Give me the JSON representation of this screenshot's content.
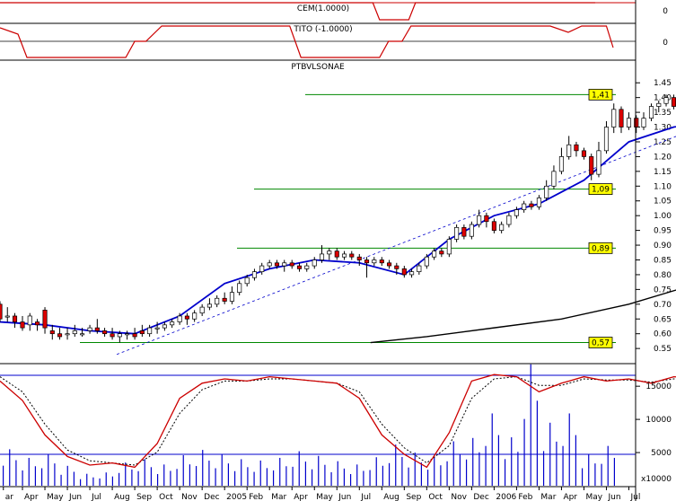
{
  "chart_data": {
    "type": "candlestick",
    "panels": {
      "cem": {
        "label": "CEM(1.0000)",
        "y_ticks": [
          "0"
        ],
        "x_label_breaks": [
          0.0,
          2.7,
          5.4,
          8.3,
          26.3,
          27.3,
          44.0
        ]
      },
      "tito": {
        "label": "TITO (-1.0000)",
        "y_ticks": [
          "0"
        ]
      },
      "price": {
        "label": "PTBVLSONAE",
        "ylim": [
          0.52,
          1.475
        ],
        "y_ticks": [
          "1.45",
          "1.40",
          "1.35",
          "1.30",
          "1.25",
          "1.20",
          "1.15",
          "1.10",
          "1.05",
          "1.00",
          "0.95",
          "0.90",
          "0.85",
          "0.80",
          "0.75",
          "0.70",
          "0.65",
          "0.60",
          "0.55"
        ],
        "support_levels": [
          {
            "label": "1,41",
            "value": 1.41
          },
          {
            "label": "1,09",
            "value": 1.09
          },
          {
            "label": "0,89",
            "value": 0.89
          },
          {
            "label": "0,57",
            "value": 0.57
          }
        ],
        "trendline": {
          "start": [
            5.2,
            0.53
          ],
          "end": [
            31.5,
            1.31
          ]
        },
        "moving_average_short": {
          "x": [
            0,
            2,
            4,
            6,
            8,
            10,
            12,
            14,
            16,
            18,
            20,
            22,
            24,
            26,
            28,
            30,
            31.5
          ],
          "y": [
            0.64,
            0.63,
            0.61,
            0.6,
            0.66,
            0.77,
            0.82,
            0.85,
            0.84,
            0.8,
            0.92,
            1.0,
            1.04,
            1.12,
            1.25,
            1.3,
            1.32
          ]
        },
        "moving_average_long": {
          "x": [
            16.5,
            19,
            22,
            25,
            28,
            31.5
          ],
          "y": [
            0.57,
            0.59,
            0.62,
            0.65,
            0.7,
            0.78
          ]
        },
        "candles": [
          [
            0.0,
            0.7,
            0.65,
            0.71,
            0.64
          ],
          [
            0.33,
            0.66,
            0.66,
            0.69,
            0.64
          ],
          [
            0.66,
            0.66,
            0.64,
            0.67,
            0.62
          ],
          [
            1.0,
            0.64,
            0.62,
            0.66,
            0.61
          ],
          [
            1.33,
            0.63,
            0.66,
            0.67,
            0.61
          ],
          [
            1.66,
            0.64,
            0.63,
            0.65,
            0.61
          ],
          [
            2.0,
            0.68,
            0.62,
            0.69,
            0.6
          ],
          [
            2.33,
            0.61,
            0.6,
            0.63,
            0.58
          ],
          [
            2.66,
            0.6,
            0.59,
            0.62,
            0.58
          ],
          [
            3.0,
            0.6,
            0.6,
            0.62,
            0.58
          ],
          [
            3.33,
            0.6,
            0.61,
            0.63,
            0.59
          ],
          [
            3.66,
            0.6,
            0.6,
            0.62,
            0.59
          ],
          [
            4.0,
            0.61,
            0.62,
            0.63,
            0.6
          ],
          [
            4.33,
            0.62,
            0.61,
            0.65,
            0.6
          ],
          [
            4.66,
            0.61,
            0.6,
            0.62,
            0.59
          ],
          [
            5.0,
            0.6,
            0.59,
            0.62,
            0.58
          ],
          [
            5.33,
            0.59,
            0.6,
            0.61,
            0.57
          ],
          [
            5.66,
            0.6,
            0.6,
            0.61,
            0.58
          ],
          [
            6.0,
            0.6,
            0.59,
            0.62,
            0.58
          ],
          [
            6.33,
            0.61,
            0.6,
            0.63,
            0.59
          ],
          [
            6.66,
            0.6,
            0.62,
            0.63,
            0.59
          ],
          [
            7.0,
            0.62,
            0.62,
            0.64,
            0.6
          ],
          [
            7.33,
            0.62,
            0.63,
            0.64,
            0.61
          ],
          [
            7.66,
            0.63,
            0.64,
            0.65,
            0.62
          ],
          [
            8.0,
            0.64,
            0.66,
            0.67,
            0.63
          ],
          [
            8.33,
            0.66,
            0.65,
            0.67,
            0.63
          ],
          [
            8.66,
            0.65,
            0.67,
            0.68,
            0.64
          ],
          [
            9.0,
            0.67,
            0.69,
            0.7,
            0.66
          ],
          [
            9.33,
            0.69,
            0.7,
            0.72,
            0.68
          ],
          [
            9.66,
            0.7,
            0.72,
            0.73,
            0.69
          ],
          [
            10.0,
            0.72,
            0.71,
            0.74,
            0.7
          ],
          [
            10.33,
            0.71,
            0.74,
            0.76,
            0.7
          ],
          [
            10.66,
            0.74,
            0.77,
            0.78,
            0.73
          ],
          [
            11.0,
            0.77,
            0.79,
            0.8,
            0.76
          ],
          [
            11.33,
            0.79,
            0.81,
            0.82,
            0.78
          ],
          [
            11.66,
            0.81,
            0.83,
            0.84,
            0.8
          ],
          [
            12.0,
            0.83,
            0.84,
            0.85,
            0.82
          ],
          [
            12.33,
            0.84,
            0.83,
            0.85,
            0.82
          ],
          [
            12.66,
            0.83,
            0.84,
            0.85,
            0.81
          ],
          [
            13.0,
            0.84,
            0.83,
            0.85,
            0.82
          ],
          [
            13.33,
            0.83,
            0.82,
            0.84,
            0.81
          ],
          [
            13.66,
            0.82,
            0.83,
            0.84,
            0.81
          ],
          [
            14.0,
            0.83,
            0.85,
            0.86,
            0.82
          ],
          [
            14.33,
            0.85,
            0.87,
            0.9,
            0.84
          ],
          [
            14.66,
            0.87,
            0.88,
            0.89,
            0.85
          ],
          [
            15.0,
            0.88,
            0.86,
            0.89,
            0.85
          ],
          [
            15.33,
            0.86,
            0.87,
            0.88,
            0.85
          ],
          [
            15.66,
            0.87,
            0.86,
            0.88,
            0.85
          ],
          [
            16.0,
            0.86,
            0.85,
            0.87,
            0.83
          ],
          [
            16.33,
            0.85,
            0.84,
            0.86,
            0.79
          ],
          [
            16.66,
            0.84,
            0.85,
            0.86,
            0.83
          ],
          [
            17.0,
            0.85,
            0.84,
            0.86,
            0.83
          ],
          [
            17.33,
            0.84,
            0.83,
            0.85,
            0.82
          ],
          [
            17.66,
            0.83,
            0.82,
            0.84,
            0.8
          ],
          [
            18.0,
            0.82,
            0.8,
            0.83,
            0.79
          ],
          [
            18.33,
            0.8,
            0.81,
            0.82,
            0.79
          ],
          [
            18.66,
            0.81,
            0.83,
            0.84,
            0.8
          ],
          [
            19.0,
            0.83,
            0.86,
            0.87,
            0.82
          ],
          [
            19.33,
            0.86,
            0.88,
            0.89,
            0.85
          ],
          [
            19.66,
            0.88,
            0.87,
            0.89,
            0.86
          ],
          [
            20.0,
            0.87,
            0.92,
            0.93,
            0.86
          ],
          [
            20.33,
            0.92,
            0.96,
            0.97,
            0.91
          ],
          [
            20.66,
            0.96,
            0.93,
            0.97,
            0.92
          ],
          [
            21.0,
            0.93,
            0.97,
            0.98,
            0.92
          ],
          [
            21.33,
            0.97,
            1.0,
            1.02,
            0.96
          ],
          [
            21.66,
            1.0,
            0.98,
            1.01,
            0.96
          ],
          [
            22.0,
            0.98,
            0.95,
            0.99,
            0.94
          ],
          [
            22.33,
            0.95,
            0.97,
            0.98,
            0.94
          ],
          [
            22.66,
            0.97,
            1.0,
            1.01,
            0.96
          ],
          [
            23.0,
            1.0,
            1.02,
            1.03,
            0.99
          ],
          [
            23.33,
            1.02,
            1.04,
            1.05,
            1.01
          ],
          [
            23.66,
            1.04,
            1.03,
            1.05,
            1.02
          ],
          [
            24.0,
            1.03,
            1.06,
            1.07,
            1.02
          ],
          [
            24.33,
            1.06,
            1.1,
            1.12,
            1.05
          ],
          [
            24.66,
            1.1,
            1.15,
            1.17,
            1.09
          ],
          [
            25.0,
            1.15,
            1.2,
            1.23,
            1.14
          ],
          [
            25.33,
            1.2,
            1.24,
            1.27,
            1.19
          ],
          [
            25.66,
            1.24,
            1.22,
            1.25,
            1.2
          ],
          [
            26.0,
            1.22,
            1.2,
            1.23,
            1.19
          ],
          [
            26.33,
            1.2,
            1.14,
            1.21,
            1.12
          ],
          [
            26.66,
            1.14,
            1.22,
            1.25,
            1.13
          ],
          [
            27.0,
            1.22,
            1.3,
            1.32,
            1.21
          ],
          [
            27.33,
            1.3,
            1.36,
            1.38,
            1.28
          ],
          [
            27.66,
            1.36,
            1.3,
            1.37,
            1.28
          ],
          [
            28.0,
            1.3,
            1.33,
            1.35,
            1.29
          ],
          [
            28.33,
            1.33,
            1.3,
            1.34,
            1.28
          ],
          [
            28.66,
            1.3,
            1.33,
            1.35,
            1.29
          ],
          [
            29.0,
            1.33,
            1.37,
            1.38,
            1.32
          ],
          [
            29.33,
            1.37,
            1.38,
            1.39,
            1.35
          ],
          [
            29.66,
            1.38,
            1.4,
            1.41,
            1.37
          ],
          [
            30.0,
            1.4,
            1.37,
            1.41,
            1.36
          ],
          [
            30.33,
            1.37,
            1.39,
            1.4,
            1.36
          ],
          [
            30.66,
            1.39,
            1.38,
            1.4,
            1.37
          ],
          [
            31.0,
            1.38,
            1.37,
            1.39,
            1.36
          ],
          [
            31.33,
            1.37,
            1.37,
            1.38,
            1.36
          ]
        ]
      },
      "oscillator": {
        "x": [
          0,
          1,
          2,
          3,
          4,
          5,
          6,
          7,
          8,
          9,
          10,
          11,
          12,
          13,
          14,
          15,
          16,
          17,
          18,
          19,
          20,
          21,
          22,
          23,
          24,
          25,
          26,
          27,
          28,
          29,
          30,
          31.5
        ],
        "k": [
          88,
          70,
          38,
          18,
          10,
          12,
          8,
          30,
          72,
          86,
          90,
          88,
          92,
          90,
          88,
          86,
          72,
          38,
          20,
          8,
          40,
          88,
          94,
          92,
          78,
          86,
          92,
          88,
          90,
          86,
          92,
          90
        ],
        "d": [
          92,
          78,
          48,
          24,
          14,
          12,
          10,
          22,
          58,
          80,
          88,
          88,
          90,
          90,
          88,
          86,
          78,
          48,
          26,
          12,
          28,
          72,
          90,
          92,
          84,
          84,
          90,
          89,
          89,
          87,
          90,
          91
        ]
      },
      "volume": {
        "y_ticks": [
          "15000",
          "10000",
          "5000"
        ],
        "unit_label": "x10000",
        "ylim": [
          0,
          18000
        ],
        "bars": [
          5500,
          4200,
          4800,
          3000,
          1800,
          2000,
          3500,
          4000,
          3200,
          4600,
          5400,
          4800,
          4000,
          3800,
          4200,
          5200,
          4500,
          3700,
          3200,
          4300,
          6200,
          5000,
          4400,
          6700,
          7200,
          10900,
          7300,
          18300,
          9500,
          10900,
          4800,
          6000
        ]
      }
    },
    "x_axis": {
      "tick_labels": [
        "ar",
        "Apr",
        "May",
        "Jun",
        "Jul",
        "Aug",
        "Sep",
        "Oct",
        "Nov",
        "Dec",
        "2005",
        "Feb",
        "Mar",
        "Apr",
        "May",
        "Jun",
        "Jul",
        "Aug",
        "Sep",
        "Oct",
        "Nov",
        "Dec",
        "2006",
        "Feb",
        "Mar",
        "Apr",
        "May",
        "Jun",
        "Jul"
      ],
      "tick_values": [
        0.15,
        1.0,
        2.0,
        3.0,
        4.0,
        5.0,
        6.0,
        7.0,
        8.0,
        9.0,
        10.0,
        11.0,
        12.0,
        13.0,
        14.0,
        15.0,
        16.0,
        17.0,
        18.0,
        19.0,
        20.0,
        21.0,
        22.0,
        23.0,
        24.0,
        25.0,
        26.0,
        27.0,
        28.0
      ],
      "xlim": [
        0,
        28.3
      ]
    }
  }
}
